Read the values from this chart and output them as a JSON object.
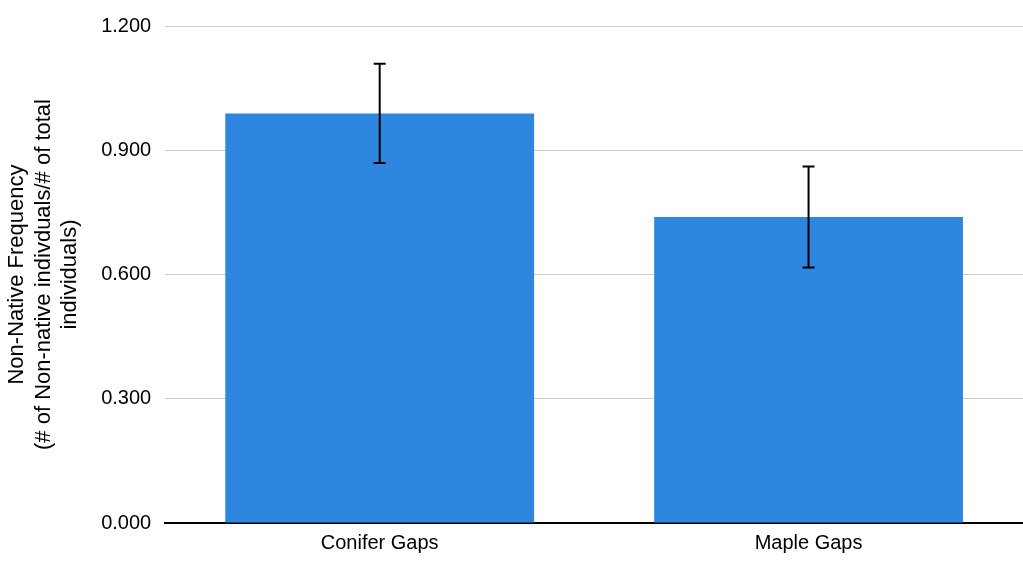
{
  "chart_data": {
    "type": "bar",
    "categories": [
      "Conifer Gaps",
      "Maple Gaps"
    ],
    "values": [
      0.989,
      0.739
    ],
    "errors": [
      0.12,
      0.122
    ],
    "color": "#2f86de",
    "ylabel": "Non-Native Frequency\n(# of Non-native indivduals/# of total\nindividuals)",
    "ylim": [
      0,
      1.2
    ],
    "yticks": [
      {
        "value": 0,
        "label": "0.000"
      },
      {
        "value": 0.3,
        "label": "0.300"
      },
      {
        "value": 0.6,
        "label": "0.600"
      },
      {
        "value": 0.9,
        "label": "0.900"
      },
      {
        "value": 1.2,
        "label": "1.200"
      }
    ],
    "grid": "y",
    "legend": false
  }
}
